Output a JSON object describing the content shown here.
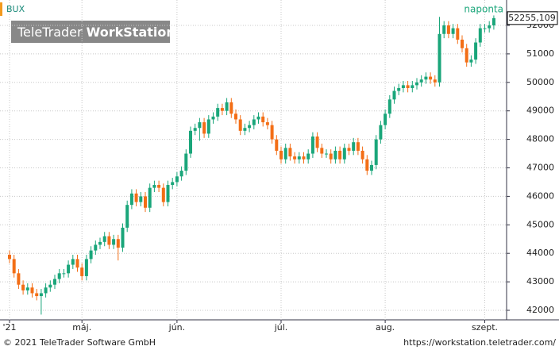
{
  "chart_data": {
    "type": "candlestick",
    "series_name": "BUX",
    "interval": "naponta",
    "logo_light": "TeleTrader",
    "logo_bold": "WorkStation",
    "footer_left": "© 2021 TeleTrader Software GmbH",
    "footer_right": "https://workstation.teletrader.com/",
    "up_color": "#1aa67a",
    "down_color": "#f36e16",
    "grid": true,
    "ylim": [
      41666,
      52891
    ],
    "yticks": [
      42000,
      43000,
      44000,
      45000,
      46000,
      47000,
      48000,
      49000,
      50000,
      51000,
      52000
    ],
    "last_price_label": "52255,109",
    "categories": [
      "'21",
      null,
      null,
      null,
      null,
      null,
      null,
      null,
      null,
      null,
      null,
      null,
      null,
      null,
      null,
      null,
      "máj.",
      null,
      null,
      null,
      null,
      null,
      null,
      null,
      null,
      null,
      null,
      null,
      null,
      null,
      null,
      null,
      null,
      null,
      null,
      null,
      null,
      "jún.",
      null,
      null,
      null,
      null,
      null,
      null,
      null,
      null,
      null,
      null,
      null,
      null,
      null,
      null,
      null,
      null,
      null,
      null,
      null,
      null,
      null,
      null,
      "júl.",
      null,
      null,
      null,
      null,
      null,
      null,
      null,
      null,
      null,
      null,
      null,
      null,
      null,
      null,
      null,
      null,
      null,
      null,
      null,
      null,
      null,
      null,
      "aug.",
      null,
      null,
      null,
      null,
      null,
      null,
      null,
      null,
      null,
      null,
      null,
      null,
      null,
      null,
      null,
      null,
      null,
      null,
      null,
      null,
      null,
      "szept.",
      null,
      null
    ],
    "open": [
      43950,
      43800,
      43300,
      42900,
      42700,
      42800,
      42600,
      42500,
      42600,
      42800,
      42900,
      43100,
      43300,
      43300,
      43600,
      43800,
      43500,
      43200,
      43800,
      44100,
      44300,
      44400,
      44600,
      44300,
      44500,
      44200,
      44900,
      45700,
      46100,
      45800,
      46000,
      45600,
      46300,
      46400,
      46300,
      45800,
      46400,
      46500,
      46700,
      46900,
      47500,
      48300,
      48400,
      48600,
      48200,
      48700,
      48800,
      49100,
      49000,
      49300,
      48900,
      48700,
      48300,
      48400,
      48500,
      48700,
      48800,
      48600,
      48500,
      48000,
      47600,
      47300,
      47700,
      47400,
      47300,
      47400,
      47300,
      47500,
      48100,
      47700,
      47500,
      47500,
      47300,
      47600,
      47300,
      47700,
      47600,
      47900,
      47600,
      47300,
      46900,
      47100,
      48000,
      48500,
      48900,
      49400,
      49700,
      49800,
      49900,
      49800,
      49900,
      50000,
      50100,
      50200,
      50100,
      50000,
      51700,
      52000,
      51700,
      51900,
      51500,
      51200,
      50700,
      50800,
      51400,
      51900,
      51900,
      52000
    ],
    "high": [
      44100,
      43950,
      43450,
      43050,
      42950,
      42950,
      42750,
      42750,
      42950,
      43050,
      43250,
      43450,
      43450,
      43750,
      43950,
      43950,
      43650,
      43950,
      44250,
      44450,
      44550,
      44750,
      44750,
      44650,
      44650,
      45050,
      45850,
      46250,
      46250,
      46150,
      46150,
      46450,
      46550,
      46550,
      46450,
      46550,
      46650,
      46850,
      47050,
      47650,
      48450,
      48550,
      48750,
      48750,
      48850,
      48950,
      49250,
      49250,
      49450,
      49450,
      49050,
      48850,
      48550,
      48650,
      48850,
      48950,
      48950,
      48750,
      48650,
      48150,
      47750,
      47850,
      47850,
      47550,
      47550,
      47550,
      47650,
      48250,
      48250,
      47850,
      47650,
      47650,
      47750,
      47750,
      47850,
      47850,
      48050,
      48050,
      47750,
      47450,
      47250,
      48150,
      48650,
      49050,
      49550,
      49850,
      49950,
      50050,
      50050,
      50050,
      50150,
      50250,
      50350,
      50350,
      50250,
      52300,
      52150,
      52150,
      52050,
      52050,
      51650,
      51350,
      50950,
      51550,
      52050,
      52050,
      52150,
      52350
    ],
    "low": [
      43650,
      43150,
      42750,
      42550,
      42550,
      42450,
      42350,
      41850,
      42450,
      42650,
      42750,
      42950,
      43150,
      43150,
      43450,
      43350,
      43050,
      43050,
      43650,
      43950,
      44150,
      44250,
      44150,
      44150,
      43750,
      44050,
      44750,
      45550,
      45650,
      45650,
      45450,
      45450,
      46150,
      46150,
      45650,
      45650,
      46250,
      46350,
      46550,
      46750,
      47350,
      48150,
      47950,
      48050,
      48050,
      48550,
      48650,
      48850,
      48850,
      48750,
      48550,
      48150,
      48150,
      48250,
      48350,
      48550,
      48450,
      48350,
      47850,
      47450,
      47150,
      47150,
      47250,
      47150,
      47150,
      47150,
      47150,
      47350,
      47550,
      47350,
      47350,
      47150,
      47150,
      47150,
      47150,
      47450,
      47450,
      47450,
      47150,
      46750,
      46750,
      46950,
      47850,
      48350,
      48750,
      49250,
      49550,
      49650,
      49650,
      49650,
      49750,
      49850,
      49950,
      49950,
      49850,
      49850,
      51550,
      51550,
      51550,
      51350,
      51050,
      50550,
      50550,
      50650,
      51250,
      51750,
      51750,
      51850
    ],
    "close": [
      43800,
      43300,
      42900,
      42700,
      42800,
      42600,
      42500,
      42600,
      42800,
      42900,
      43100,
      43300,
      43300,
      43600,
      43800,
      43500,
      43200,
      43800,
      44100,
      44300,
      44400,
      44600,
      44300,
      44500,
      44200,
      44900,
      45700,
      46100,
      45800,
      46000,
      45600,
      46300,
      46400,
      46300,
      45800,
      46400,
      46500,
      46700,
      46900,
      47500,
      48300,
      48400,
      48600,
      48200,
      48700,
      48800,
      49100,
      49000,
      49300,
      48900,
      48700,
      48300,
      48400,
      48500,
      48700,
      48800,
      48600,
      48500,
      48000,
      47600,
      47300,
      47700,
      47400,
      47300,
      47400,
      47300,
      47500,
      48100,
      47700,
      47500,
      47500,
      47300,
      47600,
      47300,
      47700,
      47600,
      47900,
      47600,
      47300,
      46900,
      47100,
      48000,
      48500,
      48900,
      49400,
      49700,
      49800,
      49900,
      49800,
      49900,
      50000,
      50100,
      50200,
      50100,
      50000,
      51700,
      52000,
      51700,
      51900,
      51500,
      51200,
      50700,
      50800,
      51400,
      51900,
      51900,
      52000,
      52255.109
    ]
  }
}
